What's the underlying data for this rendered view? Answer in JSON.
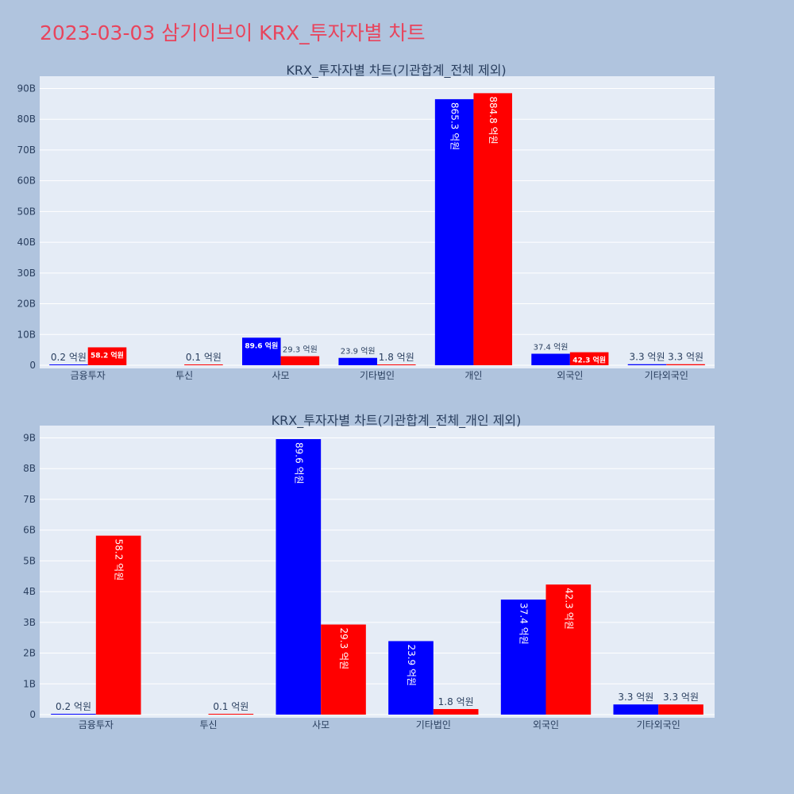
{
  "title": "2023-03-03 삼기이브이 KRX_투자자별 차트",
  "colors": {
    "background": "#b0c4de",
    "plot_bg": "#e5ecf6",
    "title": "#e8445c",
    "series_a": "#0000ff",
    "series_b": "#ff0000"
  },
  "chart_data": [
    {
      "type": "bar",
      "title": "KRX_투자자별 차트(기관합계_전체 제외)",
      "categories": [
        "금융투자",
        "투신",
        "사모",
        "기타법인",
        "개인",
        "외국인",
        "기타외국인"
      ],
      "series": [
        {
          "color": "#0000ff",
          "values": [
            20000000,
            0,
            8960000000,
            2390000000,
            86530000000,
            3740000000,
            330000000
          ],
          "labels": [
            "0.2 억원",
            "",
            "89.6 억원",
            "23.9 억원",
            "865.3 억원",
            "37.4 억원",
            "3.3 억원"
          ]
        },
        {
          "color": "#ff0000",
          "values": [
            5820000000,
            10000000,
            2930000000,
            180000000,
            88480000000,
            4230000000,
            330000000
          ],
          "labels": [
            "58.2 억원",
            "0.1 억원",
            "29.3 억원",
            "1.8 억원",
            "884.8 억원",
            "42.3 억원",
            "3.3 억원"
          ]
        }
      ],
      "yticks": [
        "0",
        "10B",
        "20B",
        "30B",
        "40B",
        "50B",
        "60B",
        "70B",
        "80B",
        "90B"
      ],
      "ylim": [
        0,
        94000000000
      ],
      "grid": true
    },
    {
      "type": "bar",
      "title": "KRX_투자자별 차트(기관합계_전체_개인 제외)",
      "categories": [
        "금융투자",
        "투신",
        "사모",
        "기타법인",
        "외국인",
        "기타외국인"
      ],
      "series": [
        {
          "color": "#0000ff",
          "values": [
            20000000,
            0,
            8960000000,
            2390000000,
            3740000000,
            330000000
          ],
          "labels": [
            "0.2 억원",
            "",
            "89.6 억원",
            "23.9 억원",
            "37.4 억원",
            "3.3 억원"
          ]
        },
        {
          "color": "#ff0000",
          "values": [
            5820000000,
            10000000,
            2930000000,
            180000000,
            4230000000,
            330000000
          ],
          "labels": [
            "58.2 억원",
            "0.1 억원",
            "29.3 억원",
            "1.8 억원",
            "42.3 억원",
            "3.3 억원"
          ]
        }
      ],
      "yticks": [
        "0",
        "1B",
        "2B",
        "3B",
        "4B",
        "5B",
        "6B",
        "7B",
        "8B",
        "9B"
      ],
      "ylim": [
        0,
        9400000000
      ],
      "grid": true
    }
  ]
}
